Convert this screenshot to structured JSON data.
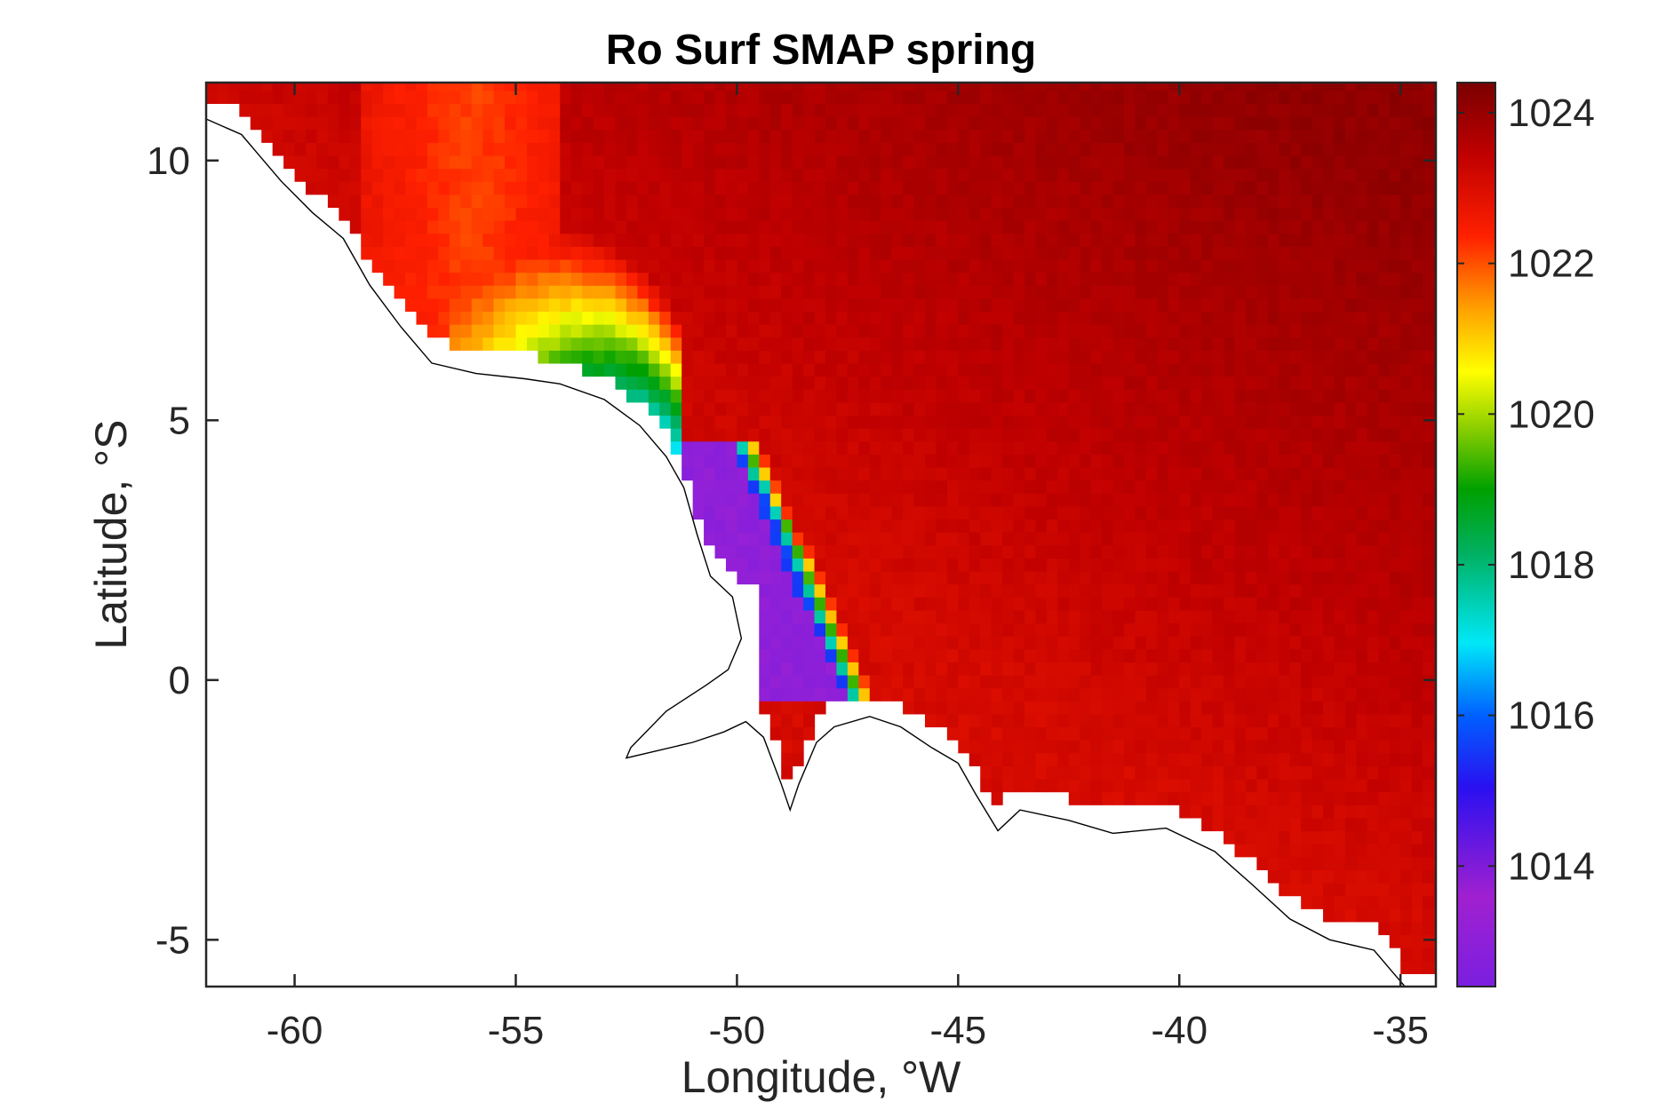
{
  "chart_data": {
    "type": "heatmap",
    "title": "Ro Surf SMAP spring",
    "xlabel": "Longitude, °W",
    "ylabel": "Latitude, °S",
    "xlim": [
      -62,
      -34.2
    ],
    "ylim": [
      -5.9,
      11.5
    ],
    "xticks": [
      -60,
      -55,
      -50,
      -45,
      -40,
      -35
    ],
    "xtick_labels": [
      "-60",
      "-55",
      "-50",
      "-45",
      "-40",
      "-35"
    ],
    "yticks": [
      -5,
      0,
      5,
      10
    ],
    "ytick_labels": [
      "-5",
      "0",
      "5",
      "10"
    ],
    "colorbar": {
      "range": [
        1012.4,
        1024.4
      ],
      "ticks": [
        1014,
        1016,
        1018,
        1020,
        1022,
        1024
      ],
      "tick_labels": [
        "1014",
        "1016",
        "1018",
        "1020",
        "1022",
        "1024"
      ],
      "colormap": "purple-blue-cyan-green-yellow-orange-red-darkred"
    },
    "field_description_values": {
      "open_ocean_typical": 1023.2,
      "northeast_max": 1024.2,
      "plume_core_min": 1012.8
    },
    "grid": false
  }
}
